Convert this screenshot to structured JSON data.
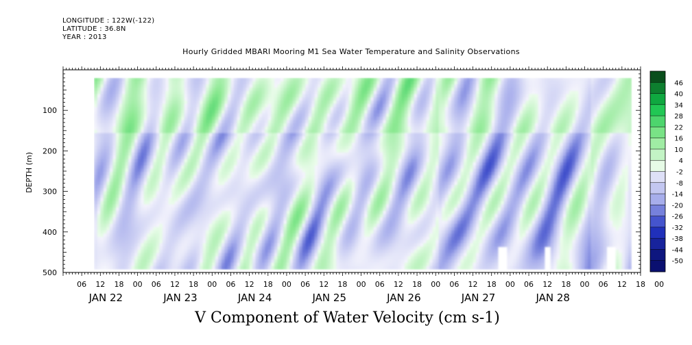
{
  "header": {
    "longitude": "LONGITUDE : 122W(-122)",
    "latitude": "LATITUDE : 36.8N",
    "year": "YEAR : 2013"
  },
  "title": "Hourly Gridded MBARI Mooring M1 Sea Water Temperature and Salinity Observations",
  "bottom_title": "V Component of Water Velocity (cm s-1)",
  "colors": {
    "neg_low": "#f4f4fc",
    "neg_mid": "#aab0ec",
    "neg_high": "#2234c2",
    "neg_max": "#0a1070",
    "pos_low": "#ecfcec",
    "pos_mid": "#8ae890",
    "pos_high": "#10c24a",
    "pos_max": "#0a4e1c"
  },
  "chart_data": {
    "type": "heatmap",
    "ylabel": "DEPTH (m)",
    "ylim": [
      500,
      0
    ],
    "yticks": [
      100,
      200,
      300,
      400,
      500
    ],
    "xticks": [
      "06",
      "12",
      "18",
      "00",
      "06",
      "12",
      "18",
      "00",
      "06",
      "12",
      "18",
      "00",
      "06",
      "12",
      "18",
      "00",
      "06",
      "12",
      "18",
      "00",
      "06",
      "12",
      "18",
      "00",
      "06",
      "12",
      "18",
      "00",
      "06",
      "12",
      "18",
      "00"
    ],
    "day_labels": [
      "JAN 22",
      "JAN 23",
      "JAN 24",
      "JAN 25",
      "JAN 26",
      "JAN 27",
      "JAN 28"
    ],
    "x_start_hour": 0,
    "x_hours": 186,
    "data_start_hour": 10,
    "data_end_hour": 183,
    "depth_top": 20,
    "depth_bottom": 485,
    "colorbar_levels": [
      -50,
      -44,
      -38,
      -32,
      -26,
      -20,
      -14,
      -8,
      -2,
      4,
      10,
      16,
      22,
      28,
      34,
      40,
      46
    ],
    "colorbar_range": [
      -50,
      50
    ]
  }
}
